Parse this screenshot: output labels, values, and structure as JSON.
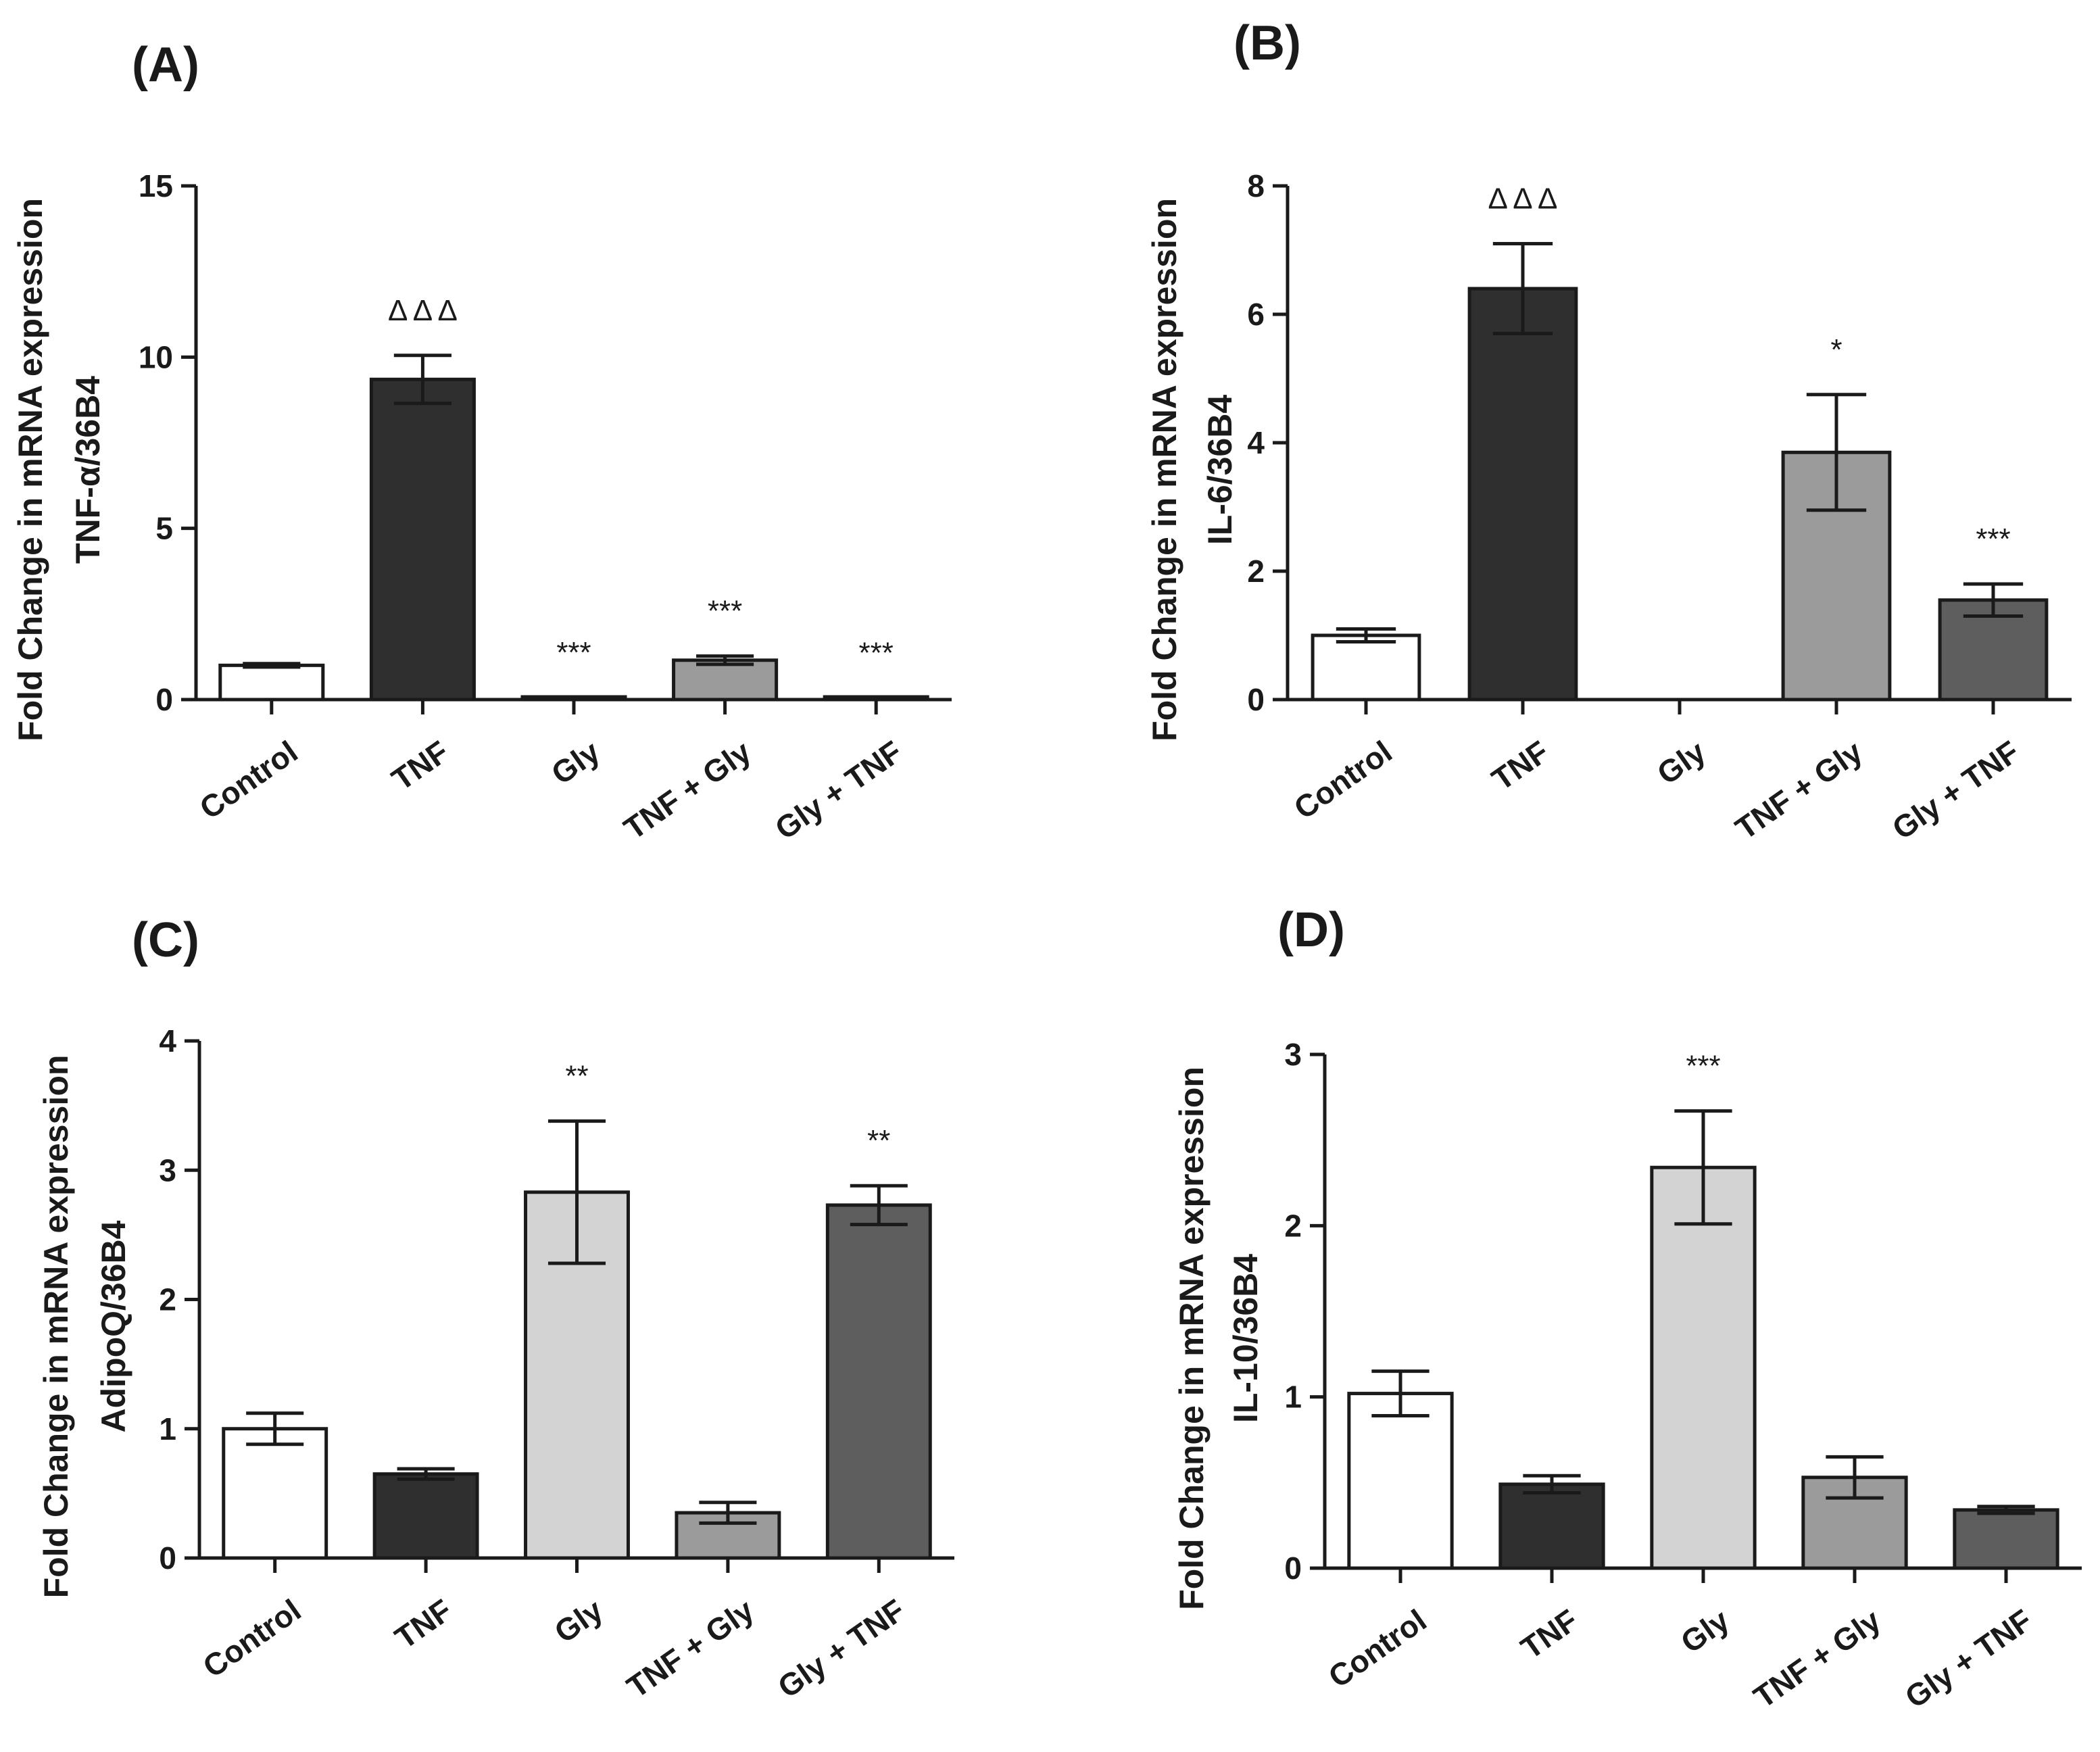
{
  "figure": {
    "panels": [
      {
        "id": "A",
        "panel_label": "(A)",
        "ylabel_lines": [
          "Fold Change in mRNA expression",
          "TNF-α/36B4"
        ]
      },
      {
        "id": "B",
        "panel_label": "(B)",
        "ylabel_lines": [
          "Fold Change in mRNA expression",
          "IL-6/36B4"
        ]
      },
      {
        "id": "C",
        "panel_label": "(C)",
        "ylabel_lines": [
          "Fold Change in mRNA expression",
          "AdipoQ/36B4"
        ]
      },
      {
        "id": "D",
        "panel_label": "(D)",
        "ylabel_lines": [
          "Fold Change in mRNA expression",
          "IL-10/36B4"
        ]
      }
    ]
  },
  "colors": {
    "Control": "#ffffff",
    "TNF": "#2f2f2f",
    "Gly": "#d3d3d3",
    "TNF + Gly": "#9b9b9b",
    "Gly + TNF": "#5e5e5e",
    "axis": "#1a1a1a"
  },
  "chart_data": [
    {
      "type": "bar",
      "title": "(A)",
      "xlabel": "",
      "ylabel": "Fold Change in mRNA expression TNF-α/36B4",
      "categories": [
        "Control",
        "TNF",
        "Gly",
        "TNF + Gly",
        "Gly + TNF"
      ],
      "values": [
        1.0,
        9.35,
        0.05,
        1.15,
        0.04
      ],
      "errors": [
        0.05,
        0.7,
        0.01,
        0.12,
        0.01
      ],
      "annotations": [
        "",
        "Δ Δ Δ",
        "***",
        "***",
        "***"
      ],
      "ylim": [
        0,
        15
      ],
      "yticks": [
        0,
        5,
        10,
        15
      ]
    },
    {
      "type": "bar",
      "title": "(B)",
      "xlabel": "",
      "ylabel": "Fold Change in mRNA expression IL-6/36B4",
      "categories": [
        "Control",
        "TNF",
        "Gly",
        "TNF + Gly",
        "Gly + TNF"
      ],
      "values": [
        1.0,
        6.4,
        0.0,
        3.85,
        1.55
      ],
      "errors": [
        0.1,
        0.7,
        0.0,
        0.9,
        0.25
      ],
      "annotations": [
        "",
        "Δ Δ Δ",
        "",
        "*",
        "***"
      ],
      "ylim": [
        0,
        8
      ],
      "yticks": [
        0,
        2,
        4,
        6,
        8
      ]
    },
    {
      "type": "bar",
      "title": "(C)",
      "xlabel": "",
      "ylabel": "Fold Change in mRNA expression AdipoQ/36B4",
      "categories": [
        "Control",
        "TNF",
        "Gly",
        "TNF + Gly",
        "Gly + TNF"
      ],
      "values": [
        1.0,
        0.65,
        2.83,
        0.35,
        2.73
      ],
      "errors": [
        0.12,
        0.04,
        0.55,
        0.08,
        0.15
      ],
      "annotations": [
        "",
        "",
        "**",
        "",
        "**"
      ],
      "ylim": [
        0,
        4
      ],
      "yticks": [
        0,
        1,
        2,
        3,
        4
      ]
    },
    {
      "type": "bar",
      "title": "(D)",
      "xlabel": "",
      "ylabel": "Fold Change in mRNA expression IL-10/36B4",
      "categories": [
        "Control",
        "TNF",
        "Gly",
        "TNF + Gly",
        "Gly + TNF"
      ],
      "values": [
        1.02,
        0.49,
        2.34,
        0.53,
        0.34
      ],
      "errors": [
        0.13,
        0.05,
        0.33,
        0.12,
        0.02
      ],
      "annotations": [
        "",
        "",
        "***",
        "",
        ""
      ],
      "ylim": [
        0,
        3
      ],
      "yticks": [
        0,
        1,
        2,
        3
      ]
    }
  ]
}
